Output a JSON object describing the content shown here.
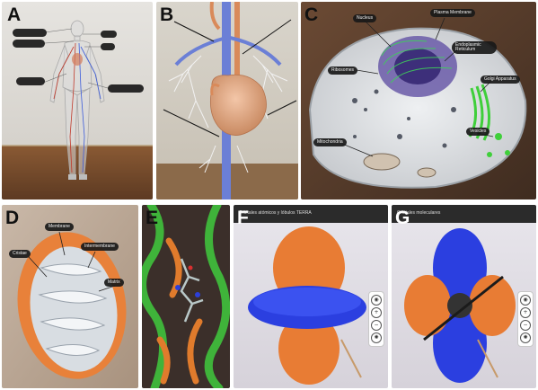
{
  "panels": [
    {
      "letter": "A"
    },
    {
      "letter": "B"
    },
    {
      "letter": "C",
      "labels": {
        "nucleus": "Nucleus",
        "plasma": "Plasma Membrane",
        "er": "Endoplasmic Reticulum",
        "ribosomes": "Ribosomes",
        "golgi": "Golgi Apparatus",
        "mito": "Mitochondria",
        "vesicles": "Vesicles"
      }
    },
    {
      "letter": "D",
      "labels": {
        "membrane": "Membrane",
        "intermembrane": "Intermembrane",
        "cristae": "Cristae",
        "matrix": "Matrix"
      }
    },
    {
      "letter": "E"
    },
    {
      "letter": "F",
      "header": "Orbitales atómicos y lóbulos TERRA"
    },
    {
      "letter": "G",
      "header": "Orbitales moleculares"
    }
  ],
  "colors": {
    "orbital_blue": "#2b3fe0",
    "orbital_orange": "#e87c34",
    "helix_green": "#3fb33a",
    "cell_green": "#4fcf3a"
  }
}
